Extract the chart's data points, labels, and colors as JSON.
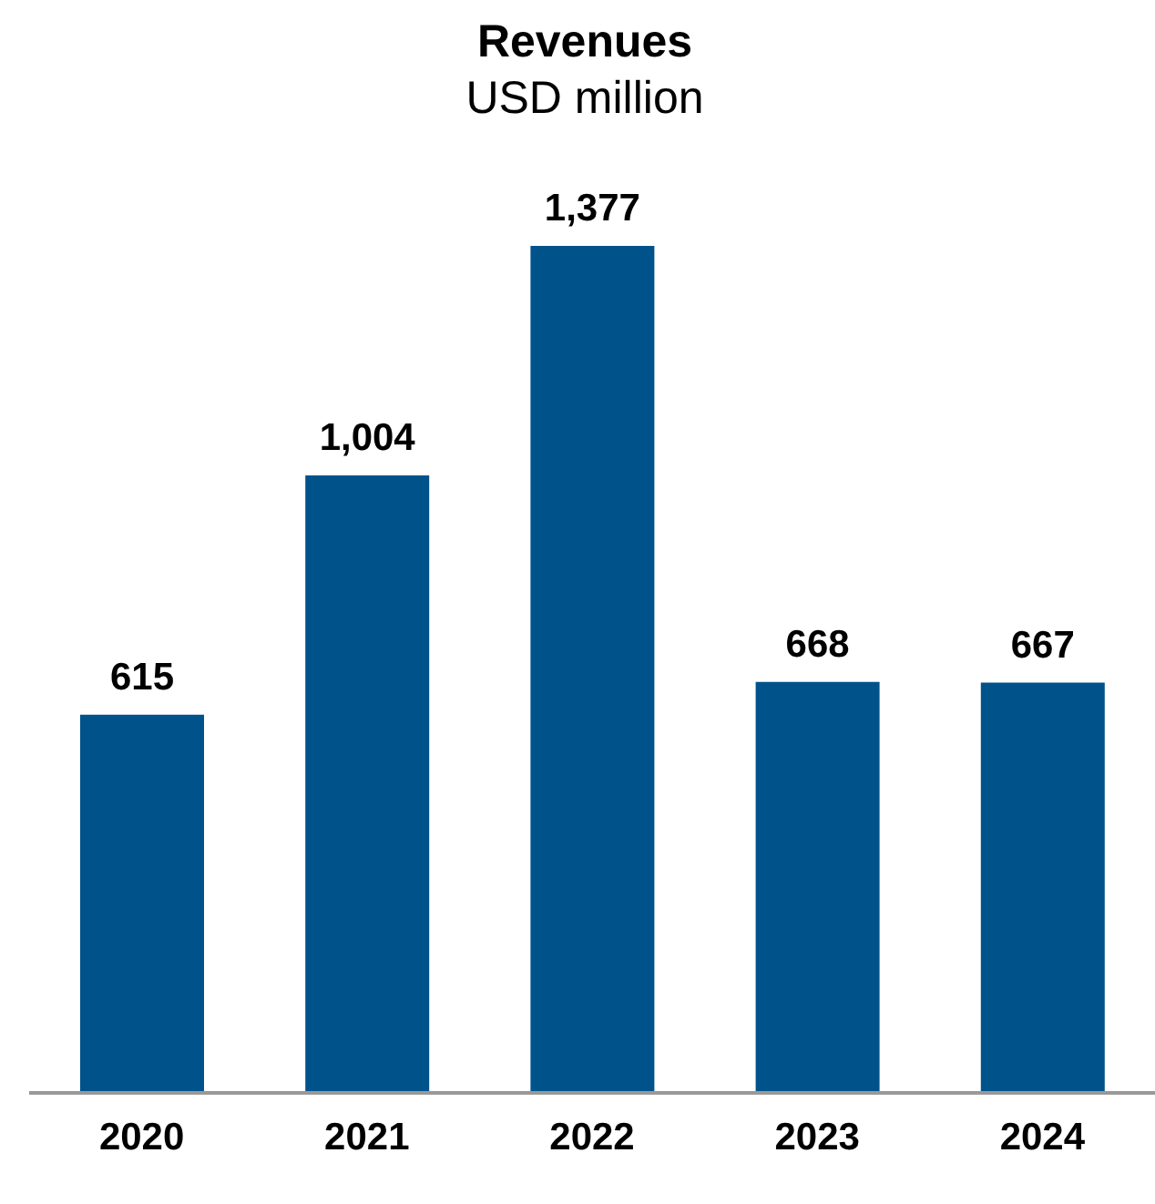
{
  "chart_data": {
    "type": "bar",
    "title": "Revenues",
    "subtitle": "USD million",
    "categories": [
      "2020",
      "2021",
      "2022",
      "2023",
      "2024"
    ],
    "values": [
      615,
      1004,
      1377,
      668,
      667
    ],
    "value_labels": [
      "615",
      "1,004",
      "1,377",
      "668",
      "667"
    ],
    "color": "#00538a"
  }
}
